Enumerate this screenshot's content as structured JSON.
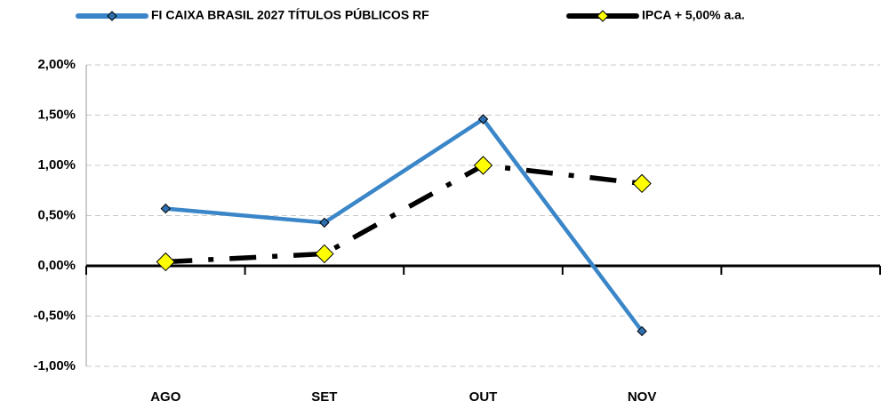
{
  "chart_data": {
    "type": "line",
    "categories": [
      "AGO",
      "SET",
      "OUT",
      "NOV",
      null
    ],
    "series": [
      {
        "name": "FI CAIXA BRASIL 2027 TÍTULOS PÚBLICOS RF",
        "color": "#3a86c8",
        "marker_color": "#2e6fb0",
        "linestyle": "solid",
        "values": [
          0.57,
          0.43,
          1.46,
          -0.65,
          null
        ]
      },
      {
        "name": "IPCA + 5,00% a.a.",
        "color": "#000000",
        "marker_color": "#ffff00",
        "linestyle": "dashdot",
        "values": [
          0.04,
          0.12,
          1.0,
          0.82,
          null
        ]
      }
    ],
    "ylim": [
      -1.0,
      2.0
    ],
    "yticks": [
      {
        "value": -1.0,
        "label": "-1,00%"
      },
      {
        "value": -0.5,
        "label": "-0,50%"
      },
      {
        "value": 0.0,
        "label": "0,00%"
      },
      {
        "value": 0.5,
        "label": "0,50%"
      },
      {
        "value": 1.0,
        "label": "1,00%"
      },
      {
        "value": 1.5,
        "label": "1,50%"
      },
      {
        "value": 2.0,
        "label": "2,00%"
      }
    ],
    "grid": true,
    "legend": "top"
  }
}
